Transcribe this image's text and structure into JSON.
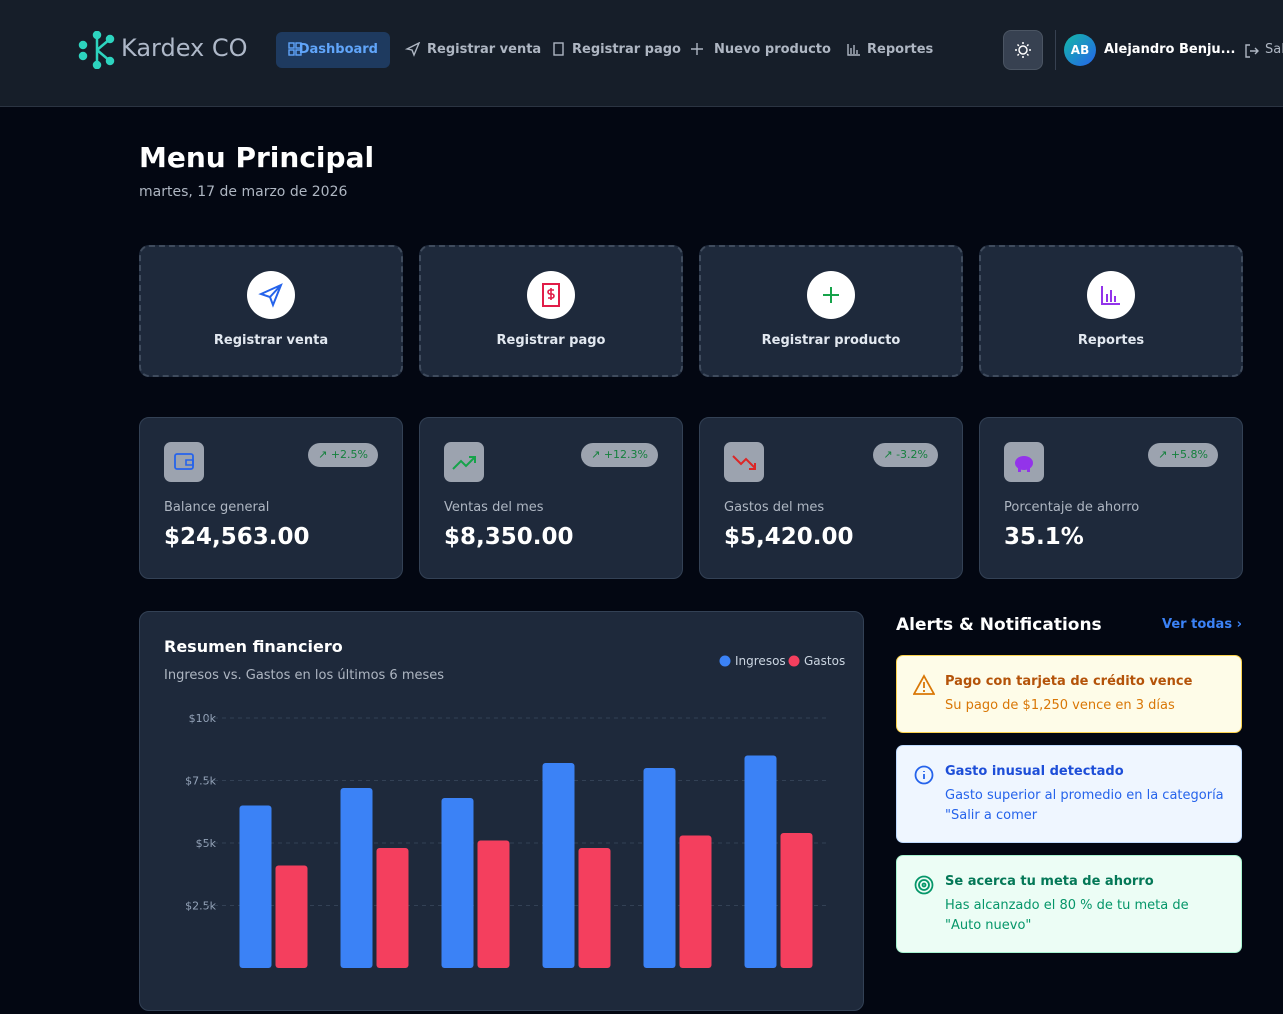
{
  "header": {
    "brand": "Kardex CO",
    "nav": [
      "Dashboard",
      "Registrar venta",
      "Registrar pago",
      "Nuevo producto",
      "Reportes"
    ],
    "user_initials": "AB",
    "user_name": "Alejandro Benju...",
    "logout": "Salir"
  },
  "page": {
    "title": "Menu Principal",
    "date": "martes, 17 de marzo de 2026"
  },
  "quick_actions": [
    "Registrar venta",
    "Registrar pago",
    "Registrar producto",
    "Reportes"
  ],
  "stats": [
    {
      "label": "Balance general",
      "value": "$24,563.00",
      "change": "+2.5%"
    },
    {
      "label": "Ventas del mes",
      "value": "$8,350.00",
      "change": "+12.3%"
    },
    {
      "label": "Gastos del mes",
      "value": "$5,420.00",
      "change": "-3.2%"
    },
    {
      "label": "Porcentaje de ahorro",
      "value": "35.1%",
      "change": "+5.8%"
    }
  ],
  "chart_data": {
    "type": "bar",
    "title": "Resumen financiero",
    "subtitle": "Ingresos vs. Gastos en los últimos 6 meses",
    "categories": [
      null,
      null,
      null,
      null,
      null,
      null
    ],
    "series": [
      {
        "name": "Ingresos",
        "color": "#3b82f6",
        "values": [
          6500,
          7200,
          6800,
          8200,
          8000,
          8500
        ]
      },
      {
        "name": "Gastos",
        "color": "#f43f5e",
        "values": [
          4100,
          4800,
          5100,
          4800,
          5300,
          5400
        ]
      }
    ],
    "ylim": [
      0,
      10000
    ],
    "yticks": [
      {
        "value": 2500,
        "label": "$2.5k"
      },
      {
        "value": 5000,
        "label": "$5k"
      },
      {
        "value": 7500,
        "label": "$7.5k"
      },
      {
        "value": 10000,
        "label": "$10k"
      }
    ],
    "grid": true
  },
  "alerts": {
    "title": "Alerts & Notifications",
    "link": "Ver todas",
    "items": [
      {
        "title": "Pago con tarjeta de crédito vence",
        "text": "Su pago de $1,250 vence en 3 días"
      },
      {
        "title": "Gasto inusual detectado",
        "text": "Gasto superior al promedio en la categoría \"Salir a comer"
      },
      {
        "title": "Se acerca tu meta de ahorro",
        "text": "Has alcanzado el 80 % de tu meta de \"Auto nuevo\""
      }
    ]
  }
}
